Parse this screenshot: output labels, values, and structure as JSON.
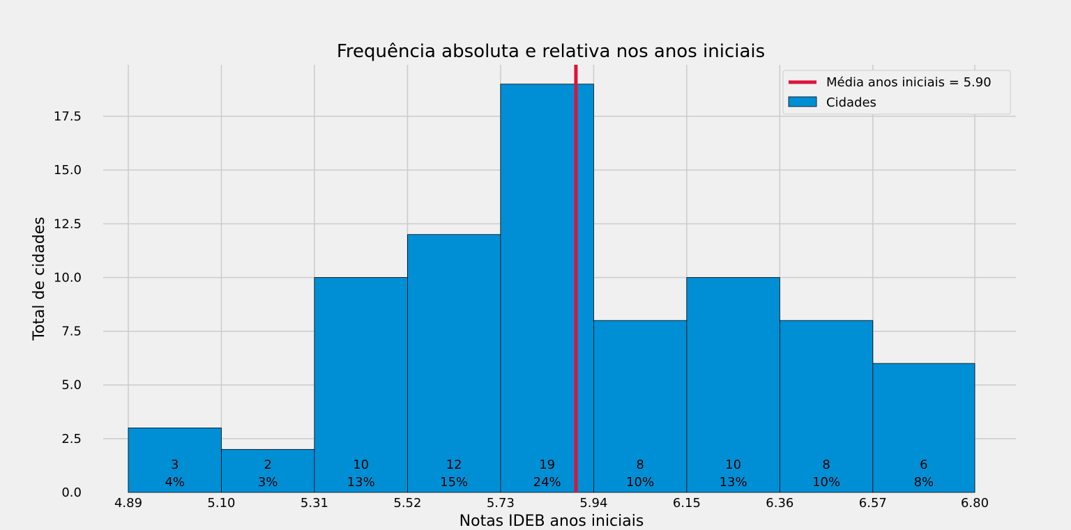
{
  "chart_data": {
    "type": "bar",
    "title": "Frequência absoluta e relativa nos anos iniciais",
    "xlabel": "Notas IDEB anos iniciais",
    "ylabel": "Total de cidades",
    "bin_edges": [
      4.89,
      5.1,
      5.31,
      5.52,
      5.73,
      5.94,
      6.15,
      6.36,
      6.57,
      6.8
    ],
    "x_tick_labels": [
      "4.89",
      "5.10",
      "5.31",
      "5.52",
      "5.73",
      "5.94",
      "6.15",
      "6.36",
      "6.57",
      "6.80"
    ],
    "values": [
      3,
      2,
      10,
      12,
      19,
      8,
      10,
      8,
      6
    ],
    "percent_labels": [
      "4%",
      "3%",
      "13%",
      "15%",
      "24%",
      "10%",
      "13%",
      "10%",
      "8%"
    ],
    "y_ticks": [
      0.0,
      2.5,
      5.0,
      7.5,
      10.0,
      12.5,
      15.0,
      17.5
    ],
    "y_tick_labels": [
      "0.0",
      "2.5",
      "5.0",
      "7.5",
      "10.0",
      "12.5",
      "15.0",
      "17.5"
    ],
    "ylim": [
      0,
      19.9
    ],
    "mean_line": {
      "value": 5.9,
      "label": "Média anos iniciais = 5.90"
    },
    "series": [
      {
        "name": "Cidades",
        "values": [
          3,
          2,
          10,
          12,
          19,
          8,
          10,
          8,
          6
        ]
      }
    ],
    "grid": true,
    "legend_position": "top-right",
    "colors": {
      "bar": "#008fd5",
      "mean_line": "#dc143c",
      "grid": "#cbcbcb",
      "background": "#f0f0f0"
    }
  }
}
